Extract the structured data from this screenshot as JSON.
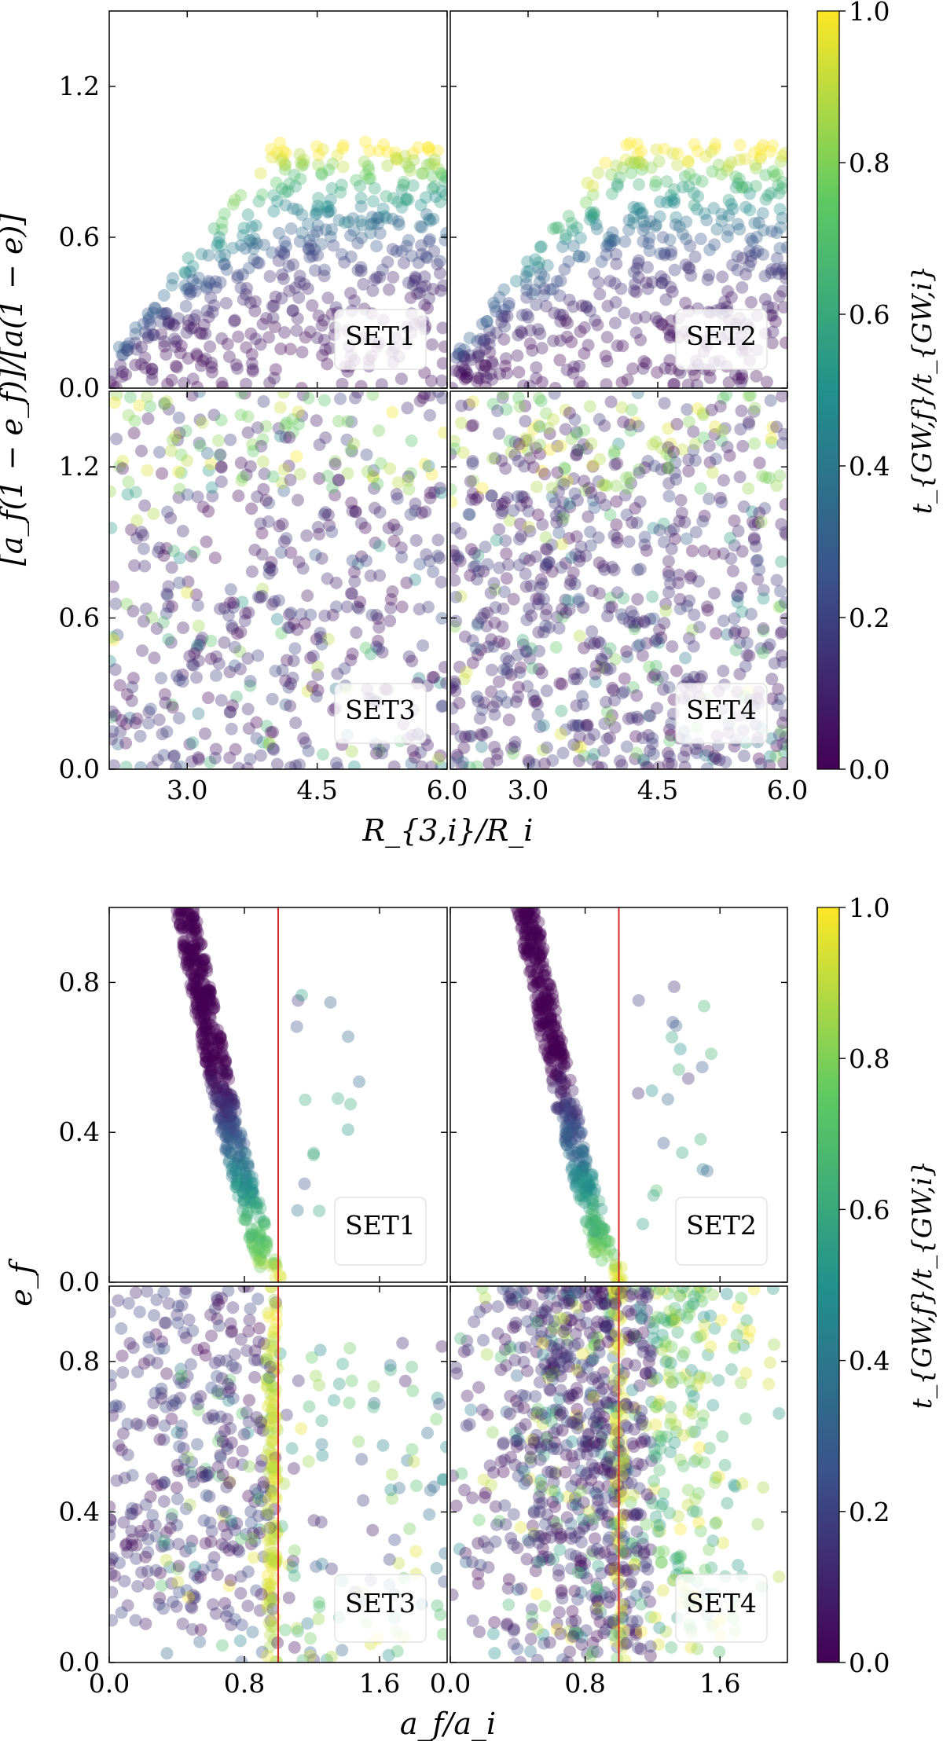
{
  "colormap": {
    "name": "viridis",
    "stops": [
      "#440154",
      "#3b528b",
      "#21918c",
      "#5ec962",
      "#fde725"
    ],
    "point_alpha": 0.35
  },
  "chart_data": [
    {
      "type": "scatter",
      "id": "top",
      "xlabel": "R_{3,i}/R_i",
      "ylabel": "[a_f(1 − e_f)]/[a(1 − e)]",
      "xlim": [
        2.1,
        6.0
      ],
      "ylim": [
        0.0,
        1.5
      ],
      "xticks": [
        3.0,
        4.5,
        6.0
      ],
      "xtick_labels": [
        "3.0",
        "4.5",
        "6.0"
      ],
      "yticks": [
        0.0,
        0.6,
        1.2
      ],
      "ytick_labels": [
        "0.0",
        "0.6",
        "1.2"
      ],
      "colorbar": {
        "label": "t_{GW,f}/t_{GW,i}",
        "range": [
          0.0,
          1.0
        ],
        "ticks": [
          0.0,
          0.2,
          0.4,
          0.6,
          0.8,
          1.0
        ],
        "tick_labels": [
          "0.0",
          "0.2",
          "0.4",
          "0.6",
          "0.8",
          "1.0"
        ]
      },
      "panels": [
        {
          "set": "SET1",
          "pattern": "envelope",
          "n": 520,
          "seed": 11
        },
        {
          "set": "SET2",
          "pattern": "envelope",
          "n": 520,
          "seed": 23
        },
        {
          "set": "SET3",
          "pattern": "uniform",
          "n": 560,
          "seed": 37
        },
        {
          "set": "SET4",
          "pattern": "uniform",
          "n": 820,
          "seed": 41
        }
      ],
      "notes": "Points colored by t_GW,f/t_GW,i (0 to 1). SET1/SET2: values rise with R_3,i/R_i toward ~0.95 at the upper envelope; SET3/SET4: broadly scattered, mostly low values."
    },
    {
      "type": "scatter",
      "id": "bottom",
      "xlabel": "a_f/a_i",
      "ylabel": "e_f",
      "xlim": [
        0.0,
        2.0
      ],
      "ylim": [
        0.0,
        1.0
      ],
      "xticks": [
        0.0,
        0.8,
        1.6
      ],
      "xtick_labels": [
        "0.0",
        "0.8",
        "1.6"
      ],
      "yticks": [
        0.0,
        0.4,
        0.8
      ],
      "ytick_labels": [
        "0.0",
        "0.4",
        "0.8"
      ],
      "reference_line": {
        "x": 1.0,
        "color": "#d62728"
      },
      "colorbar": {
        "label": "t_{GW,f}/t_{GW,i}",
        "range": [
          0.0,
          1.0
        ],
        "ticks": [
          0.0,
          0.2,
          0.4,
          0.6,
          0.8,
          1.0
        ],
        "tick_labels": [
          "0.0",
          "0.2",
          "0.4",
          "0.6",
          "0.8",
          "1.0"
        ]
      },
      "panels": [
        {
          "set": "SET1",
          "pattern": "band",
          "n": 520,
          "seed": 53
        },
        {
          "set": "SET2",
          "pattern": "band",
          "n": 460,
          "seed": 67
        },
        {
          "set": "SET3",
          "pattern": "spread",
          "n": 620,
          "seed": 71
        },
        {
          "set": "SET4",
          "pattern": "cloud",
          "n": 1100,
          "seed": 83
        }
      ],
      "notes": "SET1/SET2: narrow band from e_f≈1 at a_f/a_i≈0.45 down to e_f≈0 at a_f/a_i≈1, color increasing toward the bottom; SET3/SET4: wide scatter on both sides of a_f/a_i = 1."
    }
  ]
}
